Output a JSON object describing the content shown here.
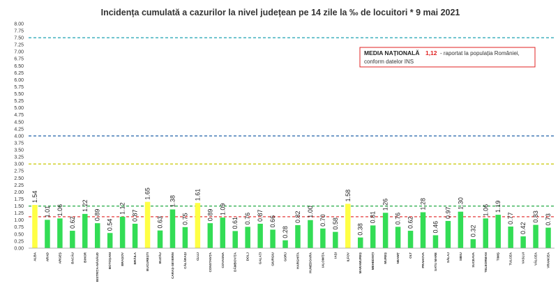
{
  "chart_data": {
    "type": "bar",
    "title": "Incidența cumulată a cazurilor la nivel județean pe 14 zile la ‰ de locuitori *  9 mai 2021",
    "xlabel": "",
    "ylabel": "",
    "ylim": [
      0,
      8
    ],
    "y_ticks": [
      "0.00",
      "0.25",
      "0.50",
      "0.75",
      "1.00",
      "1.25",
      "1.50",
      "1.75",
      "2.00",
      "2.25",
      "2.50",
      "2.75",
      "3.00",
      "3.25",
      "3.50",
      "3.75",
      "4.00",
      "4.25",
      "4.50",
      "4.75",
      "5.00",
      "5.25",
      "5.50",
      "5.75",
      "6.00",
      "6.25",
      "6.50",
      "6.75",
      "7.00",
      "7.25",
      "7.50",
      "7.75",
      "8.00"
    ],
    "categories": [
      "ALBA",
      "ARAD",
      "ARGEȘ",
      "BACĂU",
      "BIHOR",
      "BISTRIȚA-NĂSĂUD",
      "BOTOȘANI",
      "BRAȘOV",
      "BRĂILA",
      "BUCUREȘTI",
      "BUZĂU",
      "CARAȘ-SEVERIN",
      "CĂLĂRAȘI",
      "CLUJ",
      "CONSTANȚA",
      "COVASNA",
      "DÂMBOVIȚA",
      "DOLJ",
      "GALAȚI",
      "GIURGIU",
      "GORJ",
      "HARGHITA",
      "HUNEDOARA",
      "IALOMIȚA",
      "IAȘI",
      "ILFOV",
      "MARAMUREȘ",
      "MEHEDINȚI",
      "MUREȘ",
      "NEAMȚ",
      "OLT",
      "PRAHOVA",
      "SATU MARE",
      "SĂLAJ",
      "SIBIU",
      "SUCEAVA",
      "TELEORMAN",
      "TIMIȘ",
      "TULCEA",
      "VASLUI",
      "VÂLCEA",
      "VRANCEA"
    ],
    "values": [
      1.54,
      1.01,
      1.06,
      0.62,
      1.22,
      0.89,
      0.54,
      1.12,
      0.87,
      1.65,
      0.63,
      1.38,
      0.75,
      1.61,
      0.89,
      1.09,
      0.61,
      0.76,
      0.87,
      0.66,
      0.28,
      0.82,
      1.0,
      0.7,
      0.58,
      1.58,
      0.38,
      0.81,
      1.26,
      0.76,
      0.62,
      1.28,
      0.46,
      0.97,
      1.3,
      0.32,
      1.06,
      1.19,
      0.77,
      0.42,
      0.83,
      0.73
    ],
    "value_labels": [
      "1.54",
      "1.01",
      "1.06",
      "0.62",
      "1.22",
      "0.89",
      "0.54",
      "1.12",
      "0.87",
      "1.65",
      "0.63",
      "1.38",
      "0.75",
      "1.61",
      "0.89",
      "1.09",
      "0.61",
      "0.76",
      "0.87",
      "0.66",
      "0.28",
      "0.82",
      "1.00",
      "0.70",
      "0.58",
      "1.58",
      "0.38",
      "0.81",
      "1.26",
      "0.76",
      "0.62",
      "1.28",
      "0.46",
      "0.97",
      "1.30",
      "0.32",
      "1.06",
      "1.19",
      "0.77",
      "0.42",
      "0.83",
      "0.73"
    ],
    "highlighted": [
      "ALBA",
      "BUCUREȘTI",
      "CLUJ",
      "ILFOV"
    ],
    "colors": {
      "bar": "#33dd55",
      "highlight": "#ffff44",
      "national": "#e02020",
      "line_teal": "#1aa0b0",
      "line_yellow": "#cccc10",
      "line_green": "#22aa44"
    },
    "reference_lines": [
      {
        "value": 7.5,
        "style": "dashed",
        "color": "#1aa0b0"
      },
      {
        "value": 4.0,
        "style": "dashed",
        "color": "#1f5fa8"
      },
      {
        "value": 3.0,
        "style": "dashed",
        "color": "#c8c800"
      },
      {
        "value": 1.5,
        "style": "dashed",
        "color": "#22aa44"
      },
      {
        "value": 1.12,
        "style": "dashed",
        "color": "#e02020"
      }
    ],
    "grid": false,
    "annotation": {
      "bold_label": "MEDIA NAȚIONALĂ",
      "value": "1,12",
      "line1_rest": " - raportat la populația României,",
      "line2": "conform datelor INS"
    }
  }
}
